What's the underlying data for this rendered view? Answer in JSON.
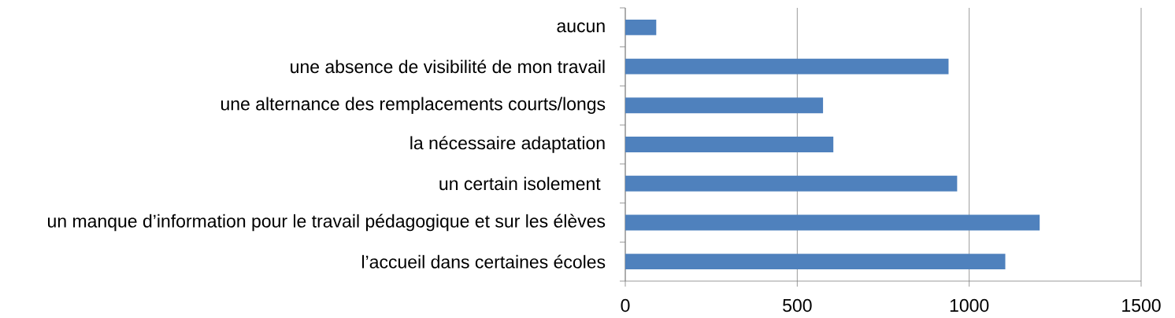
{
  "chart_data": {
    "type": "bar",
    "orientation": "horizontal",
    "categories": [
      "aucun",
      "une absence de visibilité de mon travail",
      "une alternance des remplacements courts/longs",
      "la nécessaire adaptation",
      "un certain isolement ",
      "un manque d’information pour le travail pédagogique et sur les élèves",
      "l’accueil dans certaines écoles"
    ],
    "values": [
      90,
      940,
      575,
      605,
      965,
      1205,
      1105
    ],
    "color": "#4f81bd",
    "xlim": [
      0,
      1500
    ],
    "xticks": [
      0,
      500,
      1000,
      1500
    ],
    "grid": "x"
  }
}
